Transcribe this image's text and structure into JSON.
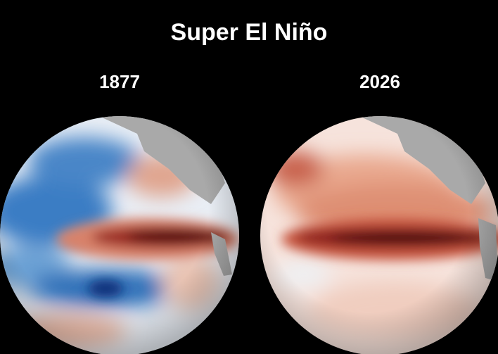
{
  "title": "Super El Niño",
  "panels": [
    {
      "label": "1877"
    },
    {
      "label": "2026"
    }
  ]
}
